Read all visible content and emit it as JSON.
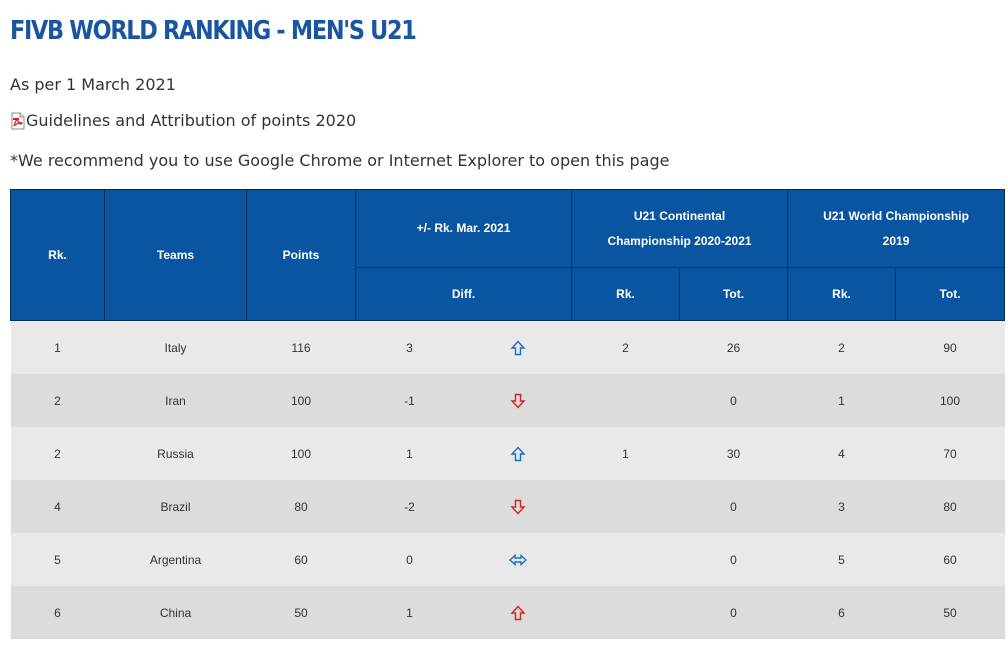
{
  "header": {
    "title": "FIVB WORLD RANKING - MEN'S U21",
    "as_per": "As per 1 March 2021",
    "guidelines_link": "Guidelines and Attribution of points 2020",
    "recommendation": "*We recommend you to use Google Chrome or Internet Explorer to open this page"
  },
  "table": {
    "headers": {
      "rank": "Rk.",
      "teams": "Teams",
      "points": "Points",
      "change_group": "+/- Rk. Mar. 2021",
      "continental_group_line1": "U21 Continental",
      "continental_group_line2": "Championship 2020-2021",
      "world_group_line1": "U21 World Championship",
      "world_group_line2": "2019",
      "diff": "Diff.",
      "cont_rank": "Rk.",
      "cont_total": "Tot.",
      "world_rank": "Rk.",
      "world_total": "Tot."
    },
    "colors": {
      "header_bg": "#0955a1",
      "arrow_up_blue": "#1a6fc4",
      "arrow_up_red": "#d42020",
      "arrow_down_red": "#d42020",
      "arrow_both_blue": "#1a6fc4"
    },
    "rows": [
      {
        "rank": "1",
        "team": "Italy",
        "points": "116",
        "diff": "3",
        "arrow_icon": "arrow-up-icon",
        "arrow_color": "#1a6fc4",
        "cont_rank": "2",
        "cont_total": "26",
        "world_rank": "2",
        "world_total": "90"
      },
      {
        "rank": "2",
        "team": "Iran",
        "points": "100",
        "diff": "-1",
        "arrow_icon": "arrow-down-icon",
        "arrow_color": "#d42020",
        "cont_rank": "",
        "cont_total": "0",
        "world_rank": "1",
        "world_total": "100"
      },
      {
        "rank": "2",
        "team": "Russia",
        "points": "100",
        "diff": "1",
        "arrow_icon": "arrow-up-icon",
        "arrow_color": "#1a6fc4",
        "cont_rank": "1",
        "cont_total": "30",
        "world_rank": "4",
        "world_total": "70"
      },
      {
        "rank": "4",
        "team": "Brazil",
        "points": "80",
        "diff": "-2",
        "arrow_icon": "arrow-down-icon",
        "arrow_color": "#d42020",
        "cont_rank": "",
        "cont_total": "0",
        "world_rank": "3",
        "world_total": "80"
      },
      {
        "rank": "5",
        "team": "Argentina",
        "points": "60",
        "diff": "0",
        "arrow_icon": "arrow-left-right-icon",
        "arrow_color": "#1a6fc4",
        "cont_rank": "",
        "cont_total": "0",
        "world_rank": "5",
        "world_total": "60"
      },
      {
        "rank": "6",
        "team": "China",
        "points": "50",
        "diff": "1",
        "arrow_icon": "arrow-up-icon",
        "arrow_color": "#d42020",
        "cont_rank": "",
        "cont_total": "0",
        "world_rank": "6",
        "world_total": "50"
      }
    ]
  }
}
